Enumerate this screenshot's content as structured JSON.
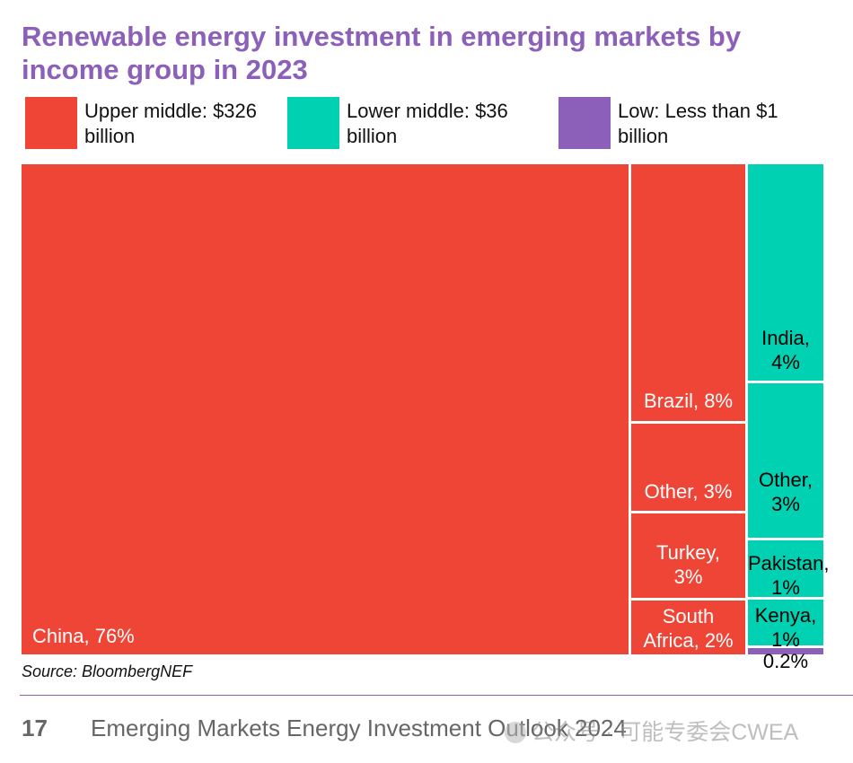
{
  "title": "Renewable energy investment in emerging markets by income group in 2023",
  "legend": [
    {
      "label": "Upper middle: $326 billion",
      "color": "#ee4536"
    },
    {
      "label": "Lower middle: $36 billion",
      "color": "#00d1b2"
    },
    {
      "label": "Low: Less than $1 billion",
      "color": "#8c5fb8"
    }
  ],
  "chart_data": {
    "type": "treemap",
    "unit": "%",
    "groups": [
      {
        "name": "Upper middle: $326 billion",
        "color": "#ee4536",
        "items": [
          {
            "name": "China",
            "label": "China, 76%",
            "value": 76
          },
          {
            "name": "Brazil",
            "label": "Brazil, 8%",
            "value": 8
          },
          {
            "name": "Other",
            "label": "Other, 3%",
            "value": 3
          },
          {
            "name": "Turkey",
            "label": "Turkey, 3%",
            "value": 3
          },
          {
            "name": "South Africa",
            "label": "South Africa, 2%",
            "value": 2
          }
        ]
      },
      {
        "name": "Lower middle: $36 billion",
        "color": "#00d1b2",
        "items": [
          {
            "name": "India",
            "label": "India, 4%",
            "value": 4
          },
          {
            "name": "Other",
            "label": "Other, 3%",
            "value": 3
          },
          {
            "name": "Pakistan",
            "label": "Pakistan, 1%",
            "value": 1
          },
          {
            "name": "Kenya",
            "label": "Kenya, 1%",
            "value": 1
          }
        ]
      },
      {
        "name": "Low: Less than $1 billion",
        "color": "#8c5fb8",
        "items": [
          {
            "name": "",
            "label": "0.2%",
            "value": 0.2
          }
        ]
      }
    ]
  },
  "source": "Source: BloombergNEF",
  "footer": {
    "page_number": "17",
    "report_title": "Emerging Markets Energy Investment Outlook 2024",
    "watermark": "公众号 · 可能专委会CWEA"
  }
}
